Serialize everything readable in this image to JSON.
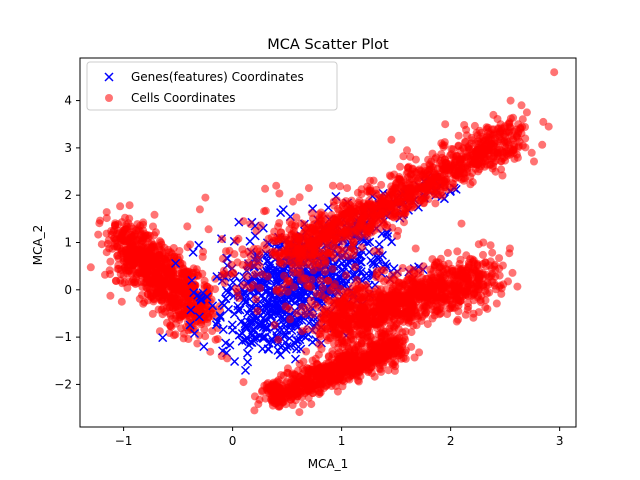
{
  "chart_data": {
    "type": "scatter",
    "title": "MCA Scatter Plot",
    "xlabel": "MCA_1",
    "ylabel": "MCA_2",
    "xlim": [
      -1.4,
      3.15
    ],
    "ylim": [
      -2.9,
      4.9
    ],
    "xticks": [
      -1,
      0,
      1,
      2,
      3
    ],
    "yticks": [
      -2,
      -1,
      0,
      1,
      2,
      3,
      4
    ],
    "grid": false,
    "legend_position": "top-left",
    "series": [
      {
        "name": "Genes(features) Coordinates",
        "marker": "x",
        "color": "#0000ff",
        "cluster_description": "dense cloud roughly x 0.0 to 1.5, y -1.3 to 1.9, with a tail along the upper-right branch up to about (1.9, 2.4)"
      },
      {
        "name": "Cells Coordinates",
        "marker": "o",
        "color": "#ff0000",
        "alpha": 0.55,
        "cluster_description": "left blob around (-0.7, 0.3); upper-right branch from (0.4, 0.8) to (2.6, 3.4); middle-right blob around (1.4, -0.2) extending to (2.4, 0.5); lower branch from (0.3, -2.4) to (1.6, -1.1)"
      }
    ],
    "outliers": [
      {
        "x": 2.95,
        "y": 4.6
      },
      {
        "x": 2.55,
        "y": 4.0
      },
      {
        "x": 2.65,
        "y": 3.9
      },
      {
        "x": 2.7,
        "y": 3.75
      },
      {
        "x": 2.85,
        "y": 3.55
      },
      {
        "x": 2.9,
        "y": 3.45
      },
      {
        "x": 1.6,
        "y": 2.95
      },
      {
        "x": 1.65,
        "y": 2.55
      },
      {
        "x": 1.95,
        "y": 3.5
      },
      {
        "x": -0.3,
        "y": 1.7
      },
      {
        "x": -0.25,
        "y": 1.95
      },
      {
        "x": 0.4,
        "y": 2.2
      },
      {
        "x": 0.7,
        "y": 2.15
      },
      {
        "x": 0.92,
        "y": 2.2
      },
      {
        "x": 1.05,
        "y": 2.15
      },
      {
        "x": -0.1,
        "y": -1.4
      },
      {
        "x": -0.05,
        "y": -1.45
      },
      {
        "x": 0.1,
        "y": -1.95
      },
      {
        "x": 0.2,
        "y": -2.55
      },
      {
        "x": 2.3,
        "y": 0.1
      },
      {
        "x": 2.4,
        "y": 0.5
      },
      {
        "x": 2.45,
        "y": 0.3
      },
      {
        "x": 2.1,
        "y": 1.4
      },
      {
        "x": 2.3,
        "y": 1.0
      }
    ],
    "legend": [
      {
        "label": "Genes(features) Coordinates",
        "marker": "x",
        "color": "#0000ff"
      },
      {
        "label": "Cells Coordinates",
        "marker": "o",
        "color": "#ff0000"
      }
    ]
  }
}
